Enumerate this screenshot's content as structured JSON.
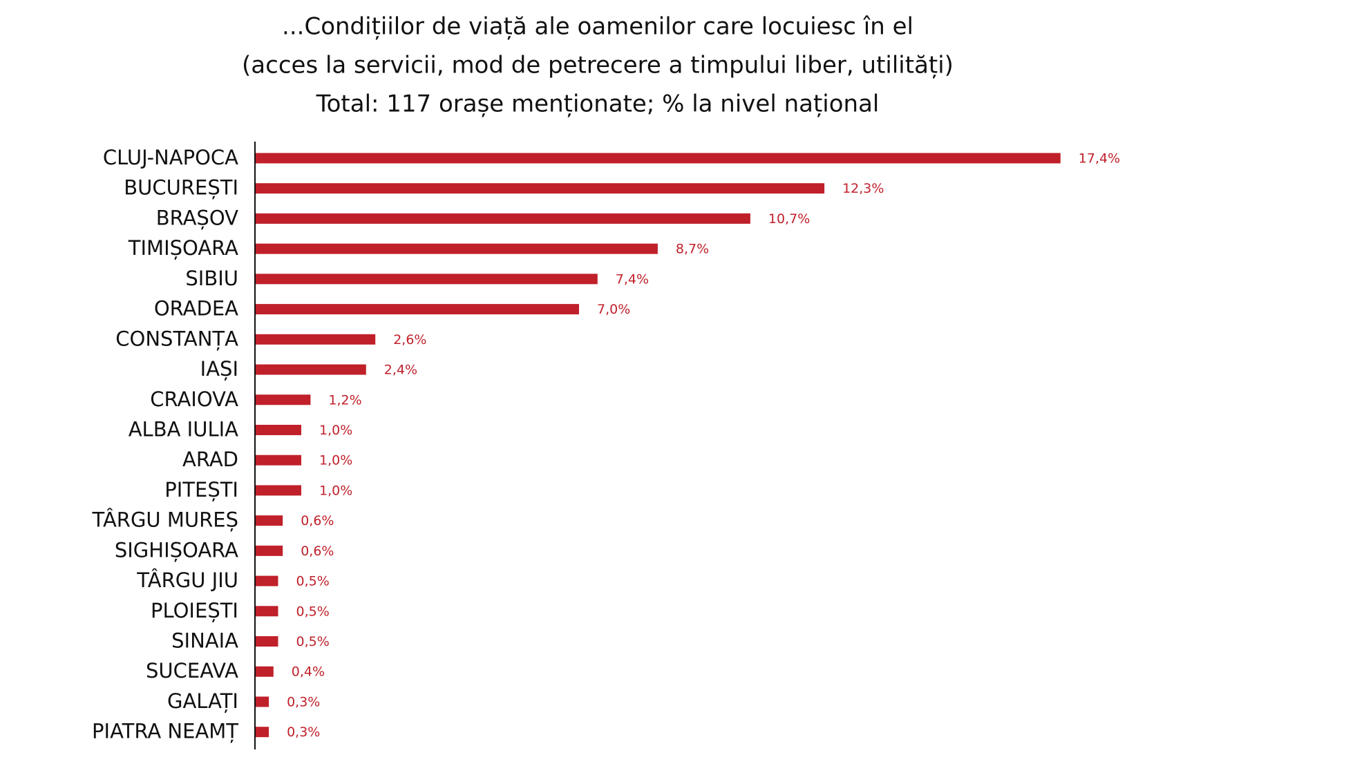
{
  "chart_data": {
    "type": "bar",
    "orientation": "horizontal",
    "title": [
      "...Condițiilor de viață ale oamenilor care locuiesc în el",
      "(acces la servicii, mod de petrecere a timpului liber, utilități)",
      "Total: 117 orașe menționate; % la nivel național"
    ],
    "categories": [
      "CLUJ-NAPOCA",
      "BUCUREȘTI",
      "BRAȘOV",
      "TIMIȘOARA",
      "SIBIU",
      "ORADEA",
      "CONSTANȚA",
      "IAȘI",
      "CRAIOVA",
      "ALBA IULIA",
      "ARAD",
      "PITEȘTI",
      "TÂRGU MUREȘ",
      "SIGHIȘOARA",
      "TÂRGU JIU",
      "PLOIEȘTI",
      "SINAIA",
      "SUCEAVA",
      "GALAȚI",
      "PIATRA NEAMȚ"
    ],
    "values": [
      17.4,
      12.3,
      10.7,
      8.7,
      7.4,
      7.0,
      2.6,
      2.4,
      1.2,
      1.0,
      1.0,
      1.0,
      0.6,
      0.6,
      0.5,
      0.5,
      0.5,
      0.4,
      0.3,
      0.3
    ],
    "value_labels": [
      "17,4%",
      "12,3%",
      "10,7%",
      "8,7%",
      "7,4%",
      "7,0%",
      "2,6%",
      "2,4%",
      "1,2%",
      "1,0%",
      "1,0%",
      "1,0%",
      "0,6%",
      "0,6%",
      "0,5%",
      "0,5%",
      "0,5%",
      "0,4%",
      "0,3%",
      "0,3%"
    ],
    "xlim": [
      0,
      20
    ],
    "grid": false,
    "colors": {
      "bar": "#C0202A",
      "value_label": "#C0202A",
      "axis": "#111111"
    }
  }
}
